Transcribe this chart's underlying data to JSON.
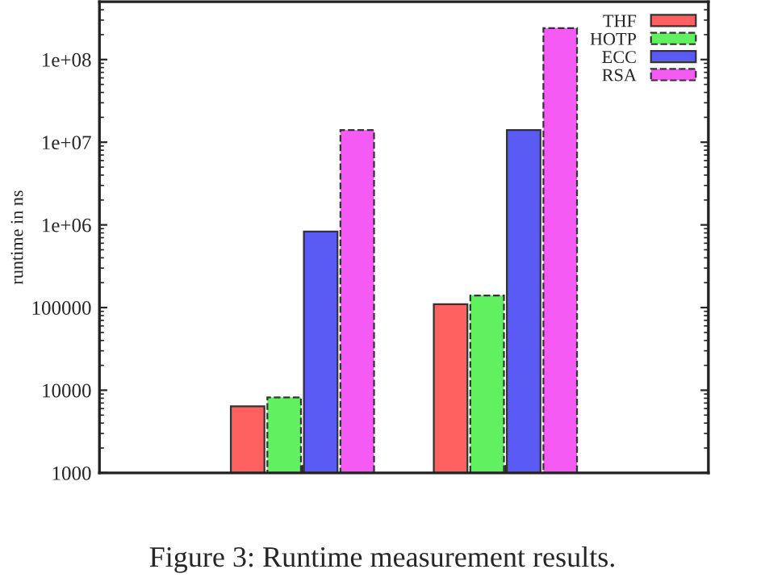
{
  "chart_data": {
    "type": "bar",
    "ylabel": "runtime in ns",
    "categories": [
      null,
      null
    ],
    "series": [
      {
        "name": "THF",
        "color": "#ff6060",
        "values": [
          6400,
          110000
        ]
      },
      {
        "name": "HOTP",
        "color": "#60f060",
        "values": [
          8200,
          140000
        ]
      },
      {
        "name": "ECC",
        "color": "#5a5af5",
        "values": [
          830000,
          14000000
        ]
      },
      {
        "name": "RSA",
        "color": "#f55af5",
        "values": [
          14000000,
          240000000
        ]
      }
    ],
    "log": true,
    "ylim": [
      1000,
      500000000
    ],
    "yticks": [
      {
        "value": 1000,
        "label": "1000"
      },
      {
        "value": 10000,
        "label": "10000"
      },
      {
        "value": 100000,
        "label": "100000"
      },
      {
        "value": 1000000,
        "label": "1e+06"
      },
      {
        "value": 10000000,
        "label": "1e+07"
      },
      {
        "value": 100000000,
        "label": "1e+08"
      }
    ],
    "legend": "top right",
    "grid": false,
    "annotations": [
      "Figure 3: Runtime measurement results."
    ]
  }
}
